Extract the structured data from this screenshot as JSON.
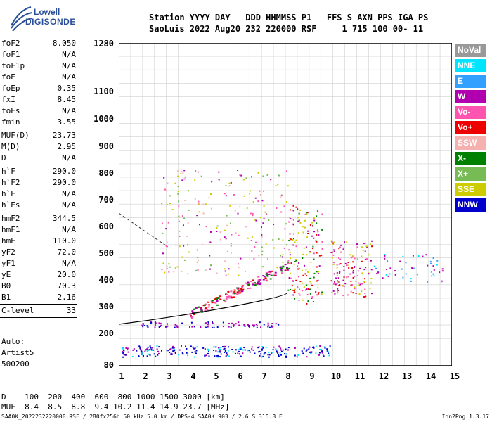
{
  "logo": {
    "line1": "Lowell",
    "line2": "DIGISONDE"
  },
  "header": {
    "row1": "Station YYYY DAY   DDD HHMMSS P1   FFS S AXN PPS IGA PS",
    "row2": "SaoLuis 2022 Aug20 232 220000 RSF     1 715 100 00- 11"
  },
  "params": [
    {
      "k": "foF2",
      "v": "8.050"
    },
    {
      "k": "foF1",
      "v": "N/A"
    },
    {
      "k": "foF1p",
      "v": "N/A"
    },
    {
      "k": "foE",
      "v": "N/A"
    },
    {
      "k": "foEp",
      "v": "0.35"
    },
    {
      "k": "fxI",
      "v": "8.45"
    },
    {
      "k": "foEs",
      "v": "N/A"
    },
    {
      "k": "fmin",
      "v": "3.55"
    },
    {
      "k": "MUF(D)",
      "v": "23.73"
    },
    {
      "k": "M(D)",
      "v": "2.95"
    },
    {
      "k": "D",
      "v": "N/A"
    },
    {
      "k": "h`F",
      "v": "290.0"
    },
    {
      "k": "h`F2",
      "v": "290.0"
    },
    {
      "k": "h`E",
      "v": "N/A"
    },
    {
      "k": "h`Es",
      "v": "N/A"
    },
    {
      "k": "hmF2",
      "v": "344.5"
    },
    {
      "k": "hmF1",
      "v": "N/A"
    },
    {
      "k": "hmE",
      "v": "110.0"
    },
    {
      "k": "yF2",
      "v": "72.0"
    },
    {
      "k": "yF1",
      "v": "N/A"
    },
    {
      "k": "yE",
      "v": "20.0"
    },
    {
      "k": "B0",
      "v": "70.3"
    },
    {
      "k": "B1",
      "v": "2.16"
    },
    {
      "k": "C-level",
      "v": "33"
    }
  ],
  "auto": [
    "Auto:",
    "Artist5",
    "500200"
  ],
  "y_axis": {
    "ticks": [
      "1280",
      "1100",
      "1000",
      "900",
      "800",
      "700",
      "600",
      "500",
      "400",
      "300",
      "200",
      "80"
    ]
  },
  "x_axis": {
    "ticks": [
      "1",
      "2",
      "3",
      "4",
      "5",
      "6",
      "7",
      "8",
      "9",
      "10",
      "11",
      "12",
      "13",
      "14",
      "15"
    ]
  },
  "legend": [
    {
      "label": "NoVal",
      "color": "#999999"
    },
    {
      "label": "NNE",
      "color": "#00e5ff"
    },
    {
      "label": "E",
      "color": "#33a0ff"
    },
    {
      "label": "W",
      "color": "#b000b0"
    },
    {
      "label": "Vo-",
      "color": "#ff55b0"
    },
    {
      "label": "Vo+",
      "color": "#ee0000"
    },
    {
      "label": "SSW",
      "color": "#f5b0b0"
    },
    {
      "label": "X-",
      "color": "#008000"
    },
    {
      "label": "X+",
      "color": "#77bb55"
    },
    {
      "label": "SSE",
      "color": "#cccc00"
    },
    {
      "label": "NNW",
      "color": "#0000cc"
    }
  ],
  "bottom": {
    "d_row": "D    100  200  400  600  800 1000 1500 3000 [km]",
    "muf_row": "MUF  8.4  8.5  8.8  9.4 10.2 11.4 14.9 23.7 [MHz]",
    "file": "SAA0K_2022232220000.RSF / 280fx256h 50 kHz 5.0 km / DPS-4 SAA0K 903 / 2.6 S 315.8 E",
    "version": "Ion2Png 1.3.17"
  }
}
